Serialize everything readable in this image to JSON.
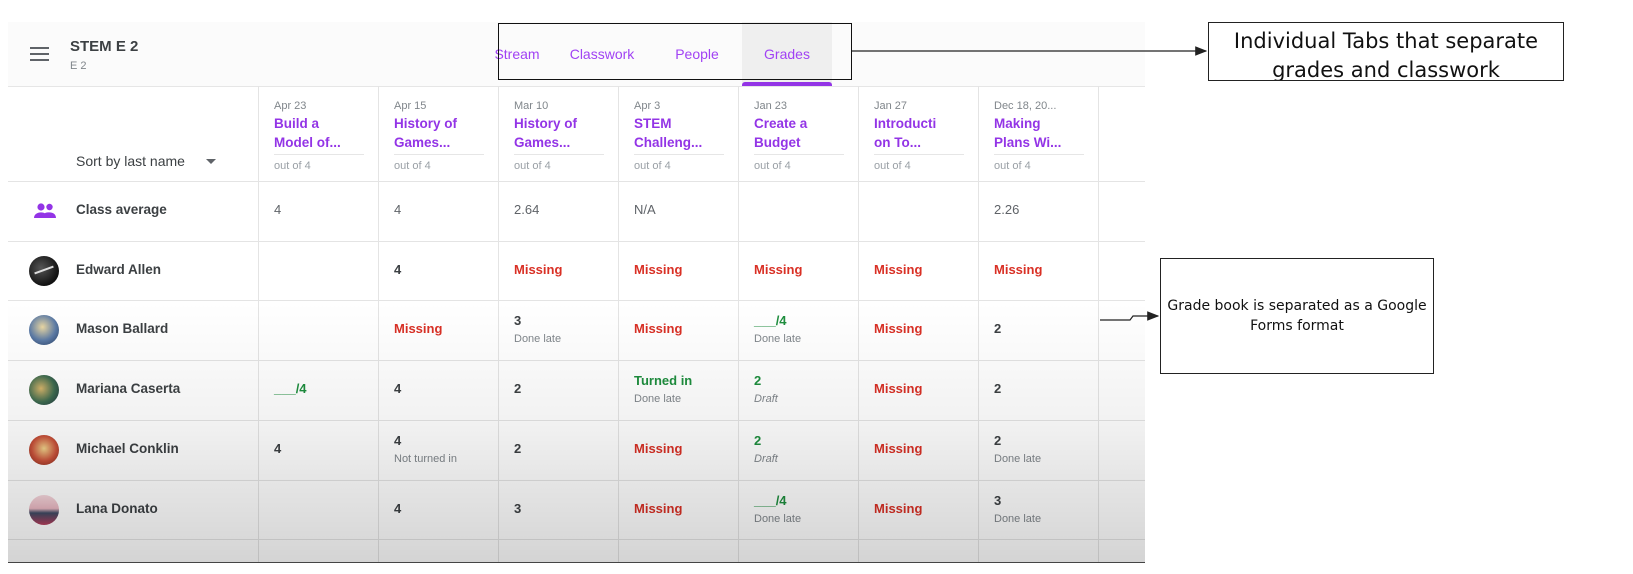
{
  "header": {
    "class_name": "STEM E 2",
    "section": "E 2",
    "tabs": [
      {
        "label": "Stream",
        "active": false
      },
      {
        "label": "Classwork",
        "active": false
      },
      {
        "label": "People",
        "active": false
      },
      {
        "label": "Grades",
        "active": true
      }
    ]
  },
  "gradebook": {
    "sort_label": "Sort by last name",
    "columns": [
      {
        "date": "Apr 23",
        "title_line1": "Build a",
        "title_line2": "Model of...",
        "points": "out of 4"
      },
      {
        "date": "Apr 15",
        "title_line1": "History of",
        "title_line2": "Games...",
        "points": "out of 4"
      },
      {
        "date": "Mar 10",
        "title_line1": "History of",
        "title_line2": "Games...",
        "points": "out of 4"
      },
      {
        "date": "Apr 3",
        "title_line1": "STEM",
        "title_line2": "Challeng...",
        "points": "out of 4"
      },
      {
        "date": "Jan 23",
        "title_line1": "Create a",
        "title_line2": "Budget",
        "points": "out of 4"
      },
      {
        "date": "Jan 27",
        "title_line1": "Introducti",
        "title_line2": "on To...",
        "points": "out of 4"
      },
      {
        "date": "Dec 18, 20...",
        "title_line1": "Making",
        "title_line2": "Plans Wi...",
        "points": "out of 4"
      }
    ],
    "class_average": {
      "label": "Class average",
      "values": [
        "4",
        "4",
        "2.64",
        "N/A",
        "",
        "",
        "2.26"
      ]
    },
    "students": [
      {
        "name": "Edward Allen",
        "grades": [
          {
            "value": "",
            "sub": "",
            "color": "#3c4043"
          },
          {
            "value": "4",
            "sub": "",
            "color": "#3c4043"
          },
          {
            "value": "Missing",
            "sub": "",
            "color": "#d93025"
          },
          {
            "value": "Missing",
            "sub": "",
            "color": "#d93025"
          },
          {
            "value": "Missing",
            "sub": "",
            "color": "#d93025"
          },
          {
            "value": "Missing",
            "sub": "",
            "color": "#d93025"
          },
          {
            "value": "Missing",
            "sub": "",
            "color": "#d93025"
          }
        ]
      },
      {
        "name": "Mason Ballard",
        "grades": [
          {
            "value": "",
            "sub": "",
            "color": "#3c4043"
          },
          {
            "value": "Missing",
            "sub": "",
            "color": "#d93025"
          },
          {
            "value": "3",
            "sub": "Done late",
            "color": "#3c4043"
          },
          {
            "value": "Missing",
            "sub": "",
            "color": "#d93025"
          },
          {
            "value": "___/4",
            "sub": "Done late",
            "color": "#1e8e3e"
          },
          {
            "value": "Missing",
            "sub": "",
            "color": "#d93025"
          },
          {
            "value": "2",
            "sub": "",
            "color": "#3c4043"
          }
        ]
      },
      {
        "name": "Mariana Caserta",
        "grades": [
          {
            "value": "___/4",
            "sub": "",
            "color": "#1e8e3e"
          },
          {
            "value": "4",
            "sub": "",
            "color": "#3c4043"
          },
          {
            "value": "2",
            "sub": "",
            "color": "#3c4043"
          },
          {
            "value": "Turned in",
            "sub": "Done late",
            "color": "#1e8e3e"
          },
          {
            "value": "2",
            "sub": "Draft",
            "color": "#1e8e3e",
            "italic": true
          },
          {
            "value": "Missing",
            "sub": "",
            "color": "#d93025"
          },
          {
            "value": "2",
            "sub": "",
            "color": "#3c4043"
          }
        ]
      },
      {
        "name": "Michael Conklin",
        "grades": [
          {
            "value": "4",
            "sub": "",
            "color": "#3c4043"
          },
          {
            "value": "4",
            "sub": "Not turned in",
            "color": "#3c4043"
          },
          {
            "value": "2",
            "sub": "",
            "color": "#3c4043"
          },
          {
            "value": "Missing",
            "sub": "",
            "color": "#d93025"
          },
          {
            "value": "2",
            "sub": "Draft",
            "color": "#1e8e3e",
            "italic": true
          },
          {
            "value": "Missing",
            "sub": "",
            "color": "#d93025"
          },
          {
            "value": "2",
            "sub": "Done late",
            "color": "#3c4043"
          }
        ]
      },
      {
        "name": "Lana Donato",
        "grades": [
          {
            "value": "",
            "sub": "",
            "color": "#3c4043"
          },
          {
            "value": "4",
            "sub": "",
            "color": "#3c4043"
          },
          {
            "value": "3",
            "sub": "",
            "color": "#3c4043"
          },
          {
            "value": "Missing",
            "sub": "",
            "color": "#d93025"
          },
          {
            "value": "___/4",
            "sub": "Done late",
            "color": "#1e8e3e"
          },
          {
            "value": "Missing",
            "sub": "",
            "color": "#d93025"
          },
          {
            "value": "3",
            "sub": "Done late",
            "color": "#3c4043"
          }
        ]
      }
    ]
  },
  "annotations": {
    "tabs_callout": "Individual Tabs that separate grades and classwork",
    "gradebook_callout": "Grade book is separated as a Google Forms format"
  }
}
